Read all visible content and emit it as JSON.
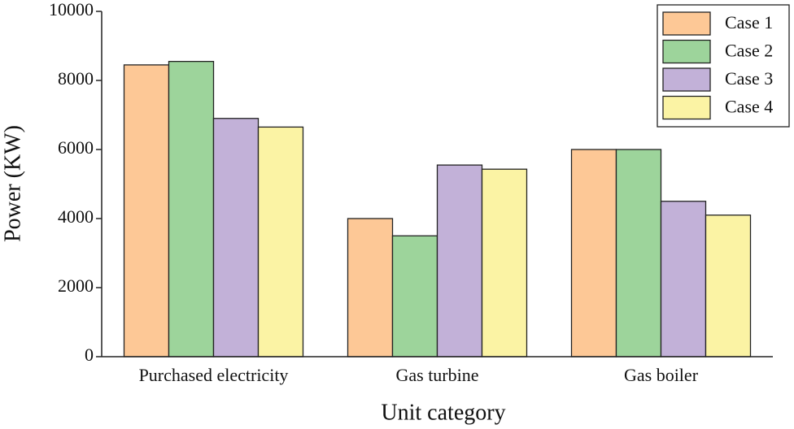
{
  "chart_data": {
    "type": "bar",
    "x_label": "Unit category",
    "y_label": "Power (KW)",
    "categories": [
      "Purchased electricity",
      "Gas turbine",
      "Gas boiler"
    ],
    "series": [
      {
        "name": "Case 1",
        "color": "#fdc896",
        "values": [
          8450,
          4000,
          6000
        ]
      },
      {
        "name": "Case 2",
        "color": "#9dd49b",
        "values": [
          8550,
          3500,
          6000
        ]
      },
      {
        "name": "Case 3",
        "color": "#c2b1d8",
        "values": [
          6900,
          5550,
          4500
        ]
      },
      {
        "name": "Case 4",
        "color": "#fbf3a4",
        "values": [
          6650,
          5430,
          4100
        ]
      }
    ],
    "ylim": [
      0,
      10000
    ],
    "yticks": [
      0,
      2000,
      4000,
      6000,
      8000,
      10000
    ],
    "legend": "upper right"
  }
}
